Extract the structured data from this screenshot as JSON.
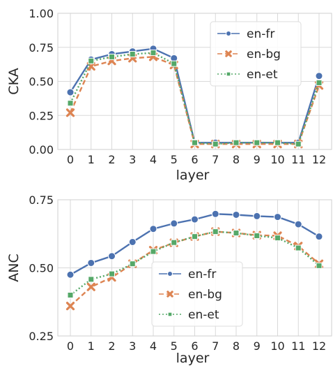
{
  "chart_data": [
    {
      "type": "line",
      "title": "",
      "xlabel": "layer",
      "ylabel": "CKA",
      "x": [
        0,
        1,
        2,
        3,
        4,
        5,
        6,
        7,
        8,
        9,
        10,
        11,
        12
      ],
      "xticks": [
        "0",
        "1",
        "2",
        "3",
        "4",
        "5",
        "6",
        "7",
        "8",
        "9",
        "10",
        "11",
        "12"
      ],
      "ylim": [
        0,
        1
      ],
      "yticks": [
        "0.00",
        "0.25",
        "0.50",
        "0.75",
        "1.00"
      ],
      "grid": true,
      "legend_position": "top-right",
      "series": [
        {
          "name": "en-fr",
          "color": "#4c72b0",
          "marker": "circle",
          "dash": "solid",
          "values": [
            0.42,
            0.66,
            0.7,
            0.72,
            0.74,
            0.67,
            0.05,
            0.05,
            0.05,
            0.05,
            0.05,
            0.05,
            0.54
          ]
        },
        {
          "name": "en-bg",
          "color": "#dd8452",
          "marker": "x",
          "dash": "dashed",
          "values": [
            0.27,
            0.61,
            0.65,
            0.67,
            0.68,
            0.62,
            0.04,
            0.04,
            0.04,
            0.04,
            0.04,
            0.04,
            0.47
          ]
        },
        {
          "name": "en-et",
          "color": "#55a868",
          "marker": "square",
          "dash": "dotted",
          "values": [
            0.34,
            0.65,
            0.68,
            0.7,
            0.71,
            0.63,
            0.05,
            0.04,
            0.05,
            0.05,
            0.05,
            0.04,
            0.49
          ]
        }
      ]
    },
    {
      "type": "line",
      "title": "",
      "xlabel": "layer",
      "ylabel": "ANC",
      "x": [
        0,
        1,
        2,
        3,
        4,
        5,
        6,
        7,
        8,
        9,
        10,
        11,
        12
      ],
      "xticks": [
        "0",
        "1",
        "2",
        "3",
        "4",
        "5",
        "6",
        "7",
        "8",
        "9",
        "10",
        "11",
        "12"
      ],
      "ylim": [
        0.25,
        0.75
      ],
      "yticks": [
        "0.25",
        "0.50",
        "0.75"
      ],
      "grid": true,
      "legend_position": "bottom-center",
      "series": [
        {
          "name": "en-fr",
          "color": "#4c72b0",
          "marker": "circle",
          "dash": "solid",
          "values": [
            0.475,
            0.518,
            0.543,
            0.595,
            0.643,
            0.663,
            0.678,
            0.698,
            0.695,
            0.69,
            0.687,
            0.66,
            0.615
          ]
        },
        {
          "name": "en-bg",
          "color": "#dd8452",
          "marker": "x",
          "dash": "dashed",
          "values": [
            0.36,
            0.43,
            0.465,
            0.515,
            0.565,
            0.592,
            0.615,
            0.633,
            0.628,
            0.62,
            0.618,
            0.58,
            0.515
          ]
        },
        {
          "name": "en-et",
          "color": "#55a868",
          "marker": "square",
          "dash": "dotted",
          "values": [
            0.4,
            0.458,
            0.478,
            0.515,
            0.56,
            0.593,
            0.615,
            0.633,
            0.628,
            0.618,
            0.61,
            0.573,
            0.508
          ]
        }
      ]
    }
  ]
}
